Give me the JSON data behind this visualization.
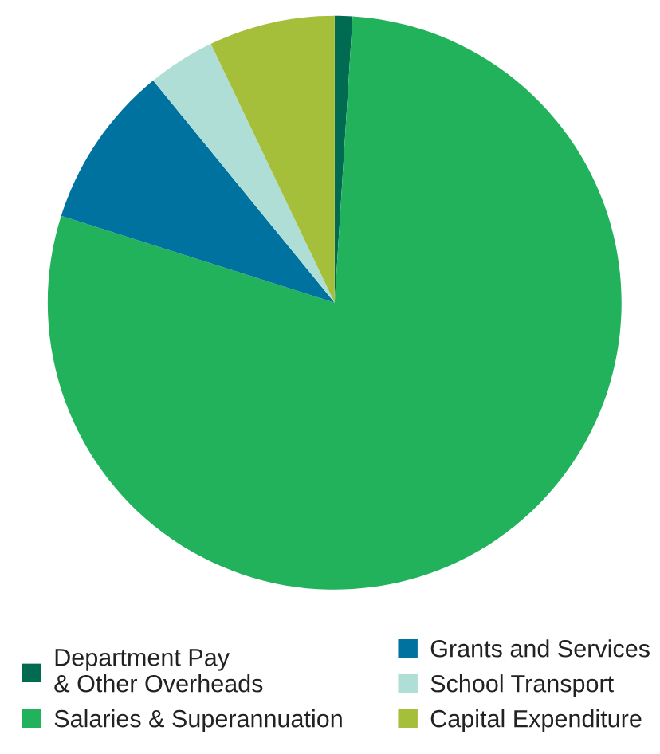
{
  "chart_data": {
    "type": "pie",
    "categories": [
      "Department Pay\n& Other Overheads",
      "Salaries & Superannuation",
      "Grants and Services",
      "School Transport",
      "Capital Expenditure"
    ],
    "values": [
      1.0,
      78.9,
      9.2,
      3.8,
      7.1
    ],
    "colors": [
      "#006b50",
      "#22b25c",
      "#0072a0",
      "#aeded6",
      "#a5bf3a"
    ],
    "legend": "bottom"
  }
}
